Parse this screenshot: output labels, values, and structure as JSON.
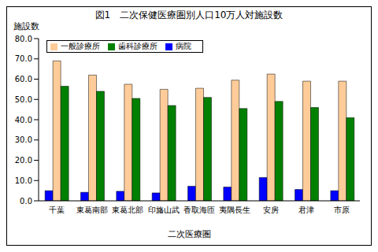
{
  "chart_data": {
    "type": "bar",
    "title": "図1　二次保健医療圏別人口10万人対施設数",
    "y_label": "施設数",
    "x_label": "二次医療圏",
    "categories": [
      "千葉",
      "東葛南部",
      "東葛北部",
      "印旛山武",
      "香取海匝",
      "夷隅長生",
      "安房",
      "君津",
      "市原"
    ],
    "series": [
      {
        "name": "病院",
        "color": "#0000ff",
        "values": [
          5.0,
          4.2,
          4.7,
          3.9,
          7.2,
          6.8,
          11.5,
          5.6,
          5.0
        ]
      },
      {
        "name": "一般診療所",
        "color": "#ffcc99",
        "values": [
          69.0,
          62.0,
          57.5,
          55.0,
          55.5,
          59.5,
          62.5,
          59.0,
          59.0
        ]
      },
      {
        "name": "歯科診療所",
        "color": "#008000",
        "values": [
          56.5,
          54.0,
          50.5,
          47.0,
          51.0,
          45.5,
          49.0,
          46.0,
          41.0
        ]
      }
    ],
    "ylim": [
      0,
      80
    ],
    "yticks": [
      {
        "value": 0,
        "label": "0.0"
      },
      {
        "value": 10,
        "label": "10.0"
      },
      {
        "value": 20,
        "label": "20.0"
      },
      {
        "value": 30,
        "label": "30.0"
      },
      {
        "value": 40,
        "label": "40.0"
      },
      {
        "value": 50,
        "label": "50.0"
      },
      {
        "value": 60,
        "label": "60.0"
      },
      {
        "value": 70,
        "label": "70.0"
      },
      {
        "value": 80,
        "label": "80.0"
      }
    ],
    "grid": false,
    "legend": "upper left"
  }
}
